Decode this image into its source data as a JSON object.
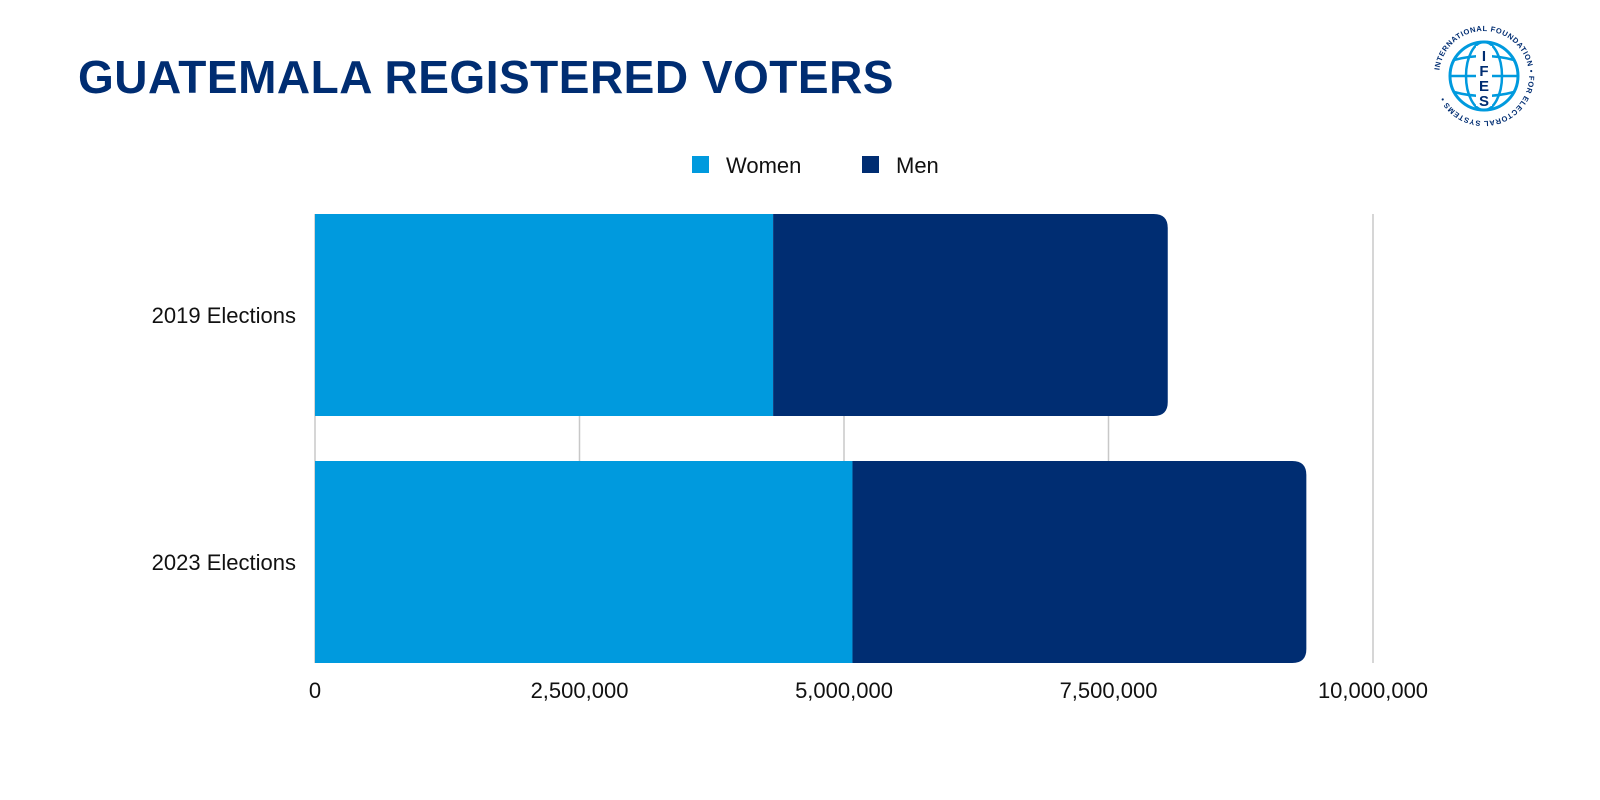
{
  "title": "GUATEMALA REGISTERED VOTERS",
  "logo": {
    "text": "INTERNATIONAL FOUNDATION FOR ELECTORAL SYSTEMS",
    "letters": "IFES"
  },
  "colors": {
    "women": "#009ade",
    "men": "#002d72",
    "grid": "#c8c8c8",
    "title": "#002d72"
  },
  "chart_data": {
    "type": "bar",
    "orientation": "horizontal",
    "stacked": true,
    "categories": [
      "2019 Elections",
      "2023 Elections"
    ],
    "series": [
      {
        "name": "Women",
        "values": [
          4330000,
          5080000
        ]
      },
      {
        "name": "Men",
        "values": [
          3730000,
          4290000
        ]
      }
    ],
    "xlim": [
      0,
      10000000
    ],
    "xticks": [
      0,
      2500000,
      5000000,
      7500000,
      10000000
    ],
    "xtick_labels": [
      "0",
      "2,500,000",
      "5,000,000",
      "7,500,000",
      "10,000,000"
    ],
    "grid": "vertical",
    "legend": "top-center"
  }
}
